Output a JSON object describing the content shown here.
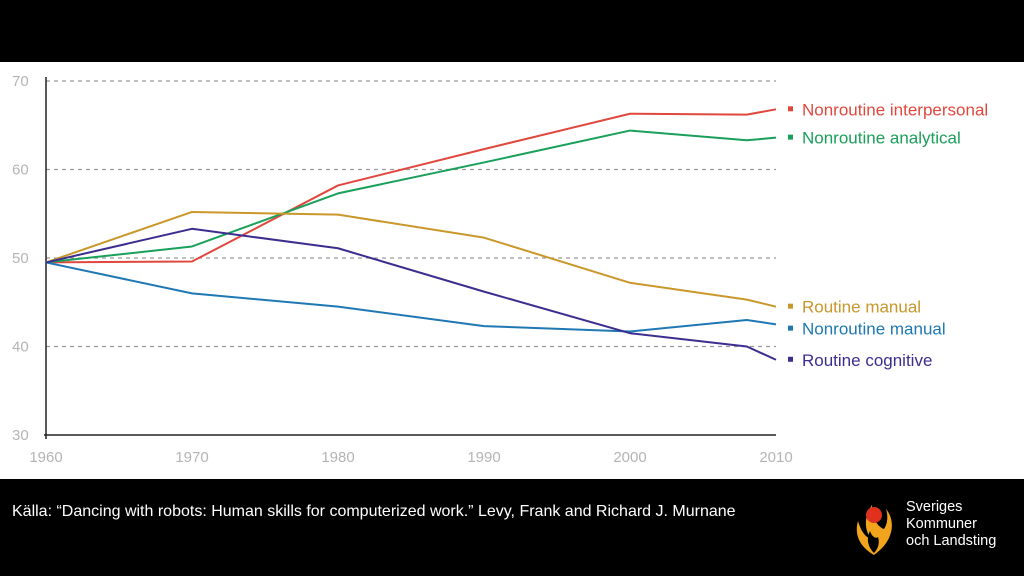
{
  "chart_data": {
    "type": "line",
    "x": [
      1960,
      1970,
      1980,
      1990,
      2000,
      2008,
      2010
    ],
    "xticks": [
      1960,
      1970,
      1980,
      1990,
      2000,
      2010
    ],
    "yticks": [
      30,
      40,
      50,
      60,
      70
    ],
    "xlim": [
      1960,
      2010
    ],
    "ylim": [
      30,
      70
    ],
    "grid": "dashed horizontal at 40, 50, 60, 70",
    "legend_placement": "right",
    "series": [
      {
        "name": "Nonroutine interpersonal",
        "color": "#e0483e",
        "values": [
          49.5,
          49.6,
          58.2,
          62.3,
          66.3,
          66.2,
          66.8
        ]
      },
      {
        "name": "Nonroutine analytical",
        "color": "#1aa05a",
        "values": [
          49.5,
          51.3,
          57.3,
          60.8,
          64.4,
          63.3,
          63.6
        ]
      },
      {
        "name": "Routine manual",
        "color": "#c9972a",
        "values": [
          49.5,
          55.2,
          54.9,
          52.3,
          47.2,
          45.3,
          44.5
        ]
      },
      {
        "name": "Nonroutine manual",
        "color": "#1f78b4",
        "values": [
          49.5,
          46.0,
          44.5,
          42.3,
          41.7,
          43.0,
          42.5
        ]
      },
      {
        "name": "Routine cognitive",
        "color": "#3b2e8f",
        "values": [
          49.5,
          53.3,
          51.1,
          46.2,
          41.5,
          40.0,
          38.5
        ]
      }
    ]
  },
  "footer": {
    "source": "Källa: “Dancing with robots: Human skills for computerized work.” Levy, Frank and Richard J. Murnane"
  },
  "logo": {
    "text": "Sveriges\nKommuner\noch Landsting",
    "icon": "skl-flame-logo-icon"
  }
}
